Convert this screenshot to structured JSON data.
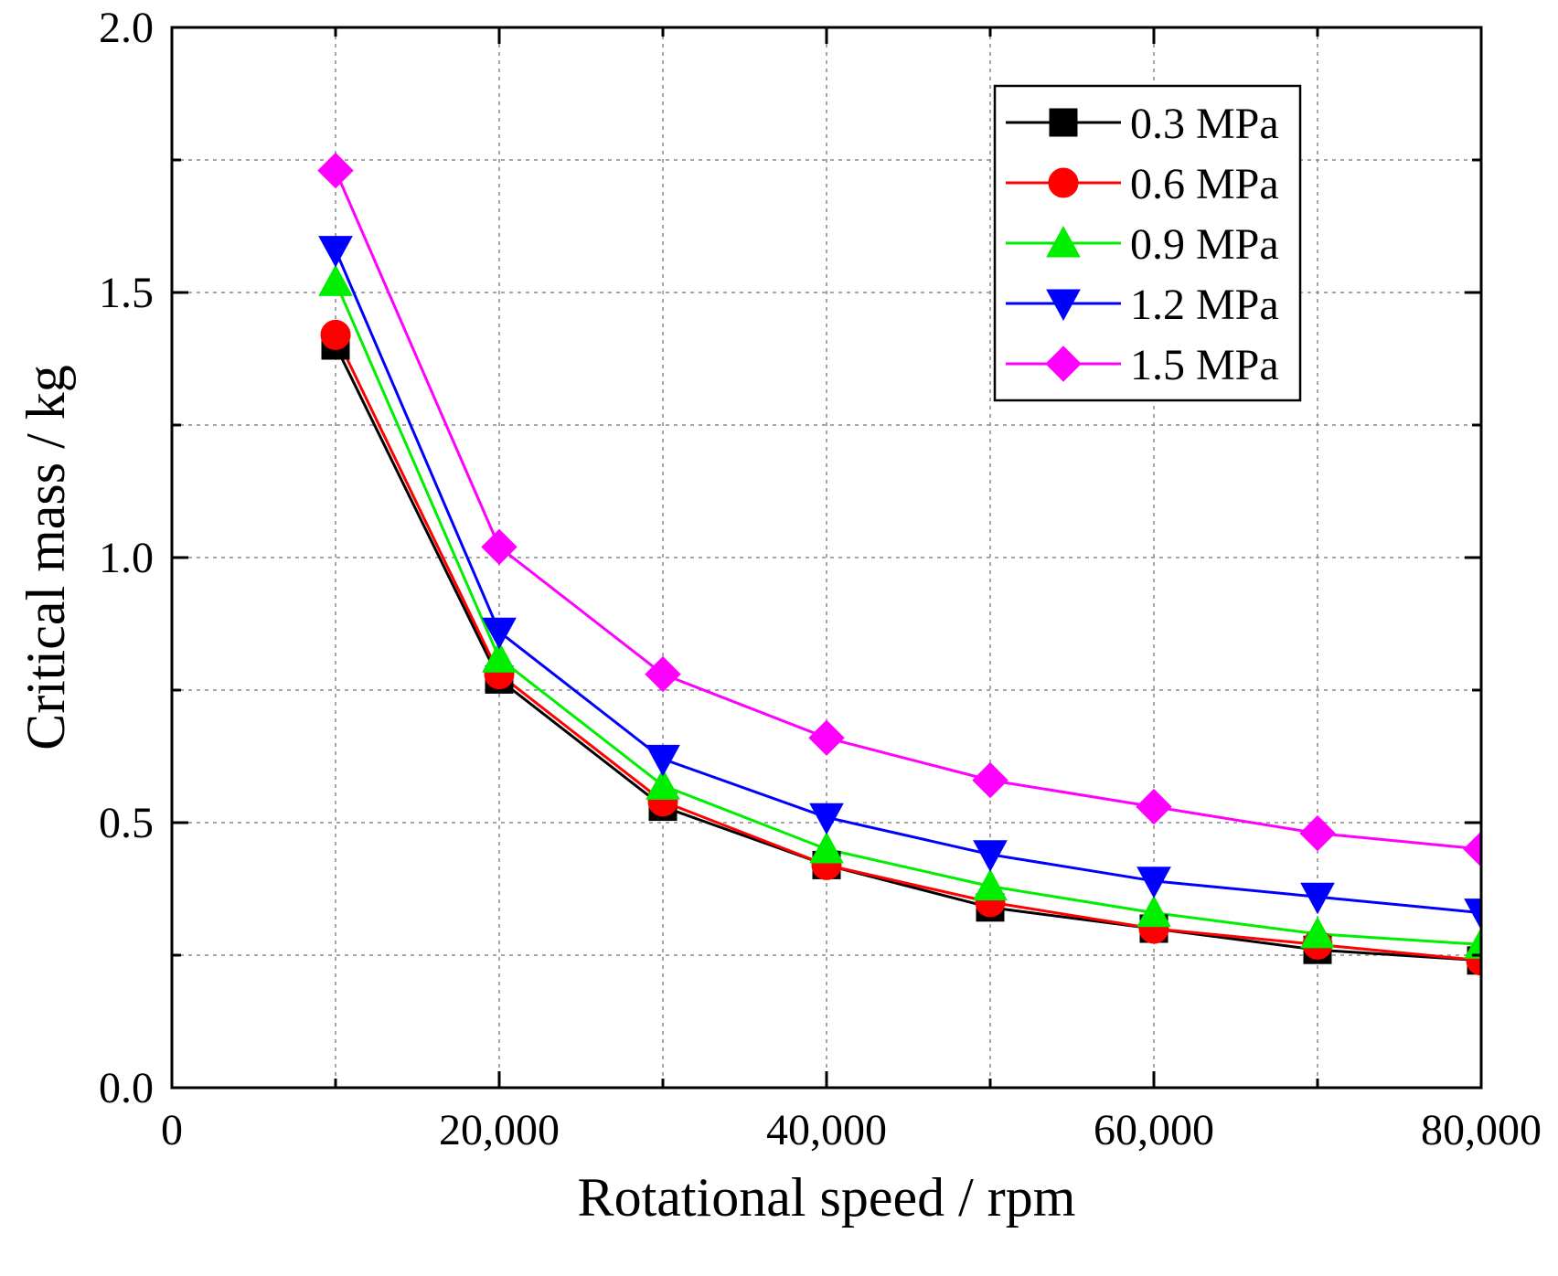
{
  "chart_data": {
    "type": "line",
    "title": "",
    "xlabel": "Rotational speed / rpm",
    "ylabel": "Critical mass / kg",
    "xlim": [
      0,
      80000
    ],
    "ylim": [
      0,
      2.0
    ],
    "x_ticks": [
      0,
      20000,
      40000,
      60000,
      80000
    ],
    "x_tick_labels": [
      "0",
      "20,000",
      "40,000",
      "60,000",
      "80,000"
    ],
    "x_minor_ticks": [
      10000,
      30000,
      50000,
      70000
    ],
    "y_ticks": [
      0,
      0.5,
      1.0,
      1.5,
      2.0
    ],
    "y_tick_labels": [
      "0.0",
      "0.5",
      "1.0",
      "1.5",
      "2.0"
    ],
    "y_minor_ticks": [
      0.25,
      0.75,
      1.25,
      1.75
    ],
    "grid": true,
    "legend_position": "top-right",
    "x": [
      10000,
      20000,
      30000,
      40000,
      50000,
      60000,
      70000,
      80000
    ],
    "series": [
      {
        "name": "0.3 MPa",
        "color": "#000000",
        "marker": "square",
        "values": [
          1.4,
          0.77,
          0.53,
          0.42,
          0.34,
          0.3,
          0.26,
          0.24
        ]
      },
      {
        "name": "0.6 MPa",
        "color": "#ff0000",
        "marker": "circle",
        "values": [
          1.42,
          0.78,
          0.54,
          0.42,
          0.35,
          0.3,
          0.27,
          0.24
        ]
      },
      {
        "name": "0.9 MPa",
        "color": "#00ee00",
        "marker": "triangle-up",
        "values": [
          1.52,
          0.81,
          0.57,
          0.45,
          0.38,
          0.33,
          0.29,
          0.27
        ]
      },
      {
        "name": "1.2 MPa",
        "color": "#0000ff",
        "marker": "triangle-down",
        "values": [
          1.58,
          0.86,
          0.62,
          0.51,
          0.44,
          0.39,
          0.36,
          0.33
        ]
      },
      {
        "name": "1.5 MPa",
        "color": "#ff00ff",
        "marker": "diamond",
        "values": [
          1.73,
          1.02,
          0.78,
          0.66,
          0.58,
          0.53,
          0.48,
          0.45
        ]
      }
    ]
  }
}
